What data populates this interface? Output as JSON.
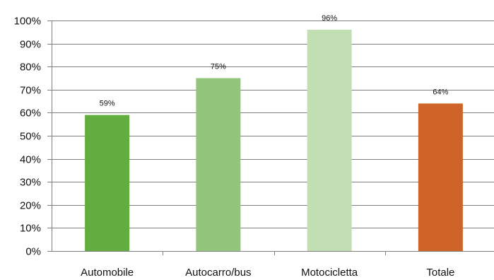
{
  "chart_data": {
    "type": "bar",
    "title": "",
    "xlabel": "",
    "ylabel": "",
    "categories": [
      "Automobile",
      "Autocarro/bus",
      "Motocicletta",
      "Totale"
    ],
    "values": [
      59,
      75,
      96,
      64
    ],
    "data_labels": [
      "59%",
      "75%",
      "96%",
      "64%"
    ],
    "bar_colors": [
      "#62ad3f",
      "#93c67c",
      "#c1dfb2",
      "#cf6428"
    ],
    "ylim": [
      0,
      100
    ],
    "yticks": [
      0,
      10,
      20,
      30,
      40,
      50,
      60,
      70,
      80,
      90,
      100
    ],
    "ytick_labels": [
      "0%",
      "10%",
      "20%",
      "30%",
      "40%",
      "50%",
      "60%",
      "70%",
      "80%",
      "90%",
      "100%"
    ],
    "grid": true,
    "grid_color": "#7f7f7f",
    "legend": "none"
  }
}
